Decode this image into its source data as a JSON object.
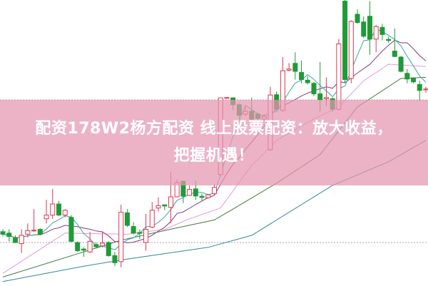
{
  "banner": {
    "line1": "配资178W2杨方配资 线上股票配资：放大收益，",
    "line2": "把握机遇！"
  },
  "colors": {
    "up": "#e0364f",
    "down": "#1f9a38",
    "ma5": "#3aa6a6",
    "ma10": "#8a3a7a",
    "ma20": "#e69ad8",
    "ma30": "#3f7a3a",
    "ma60": "#2a8a96",
    "grid": "#aaaaaa"
  },
  "chart_data": {
    "type": "candlestick",
    "title": "",
    "ylim": [
      0,
      100
    ],
    "grid": {
      "horizontal_dashed": [
        65,
        15
      ]
    },
    "candles": [
      [
        18.8,
        19.6,
        17.1,
        17.9
      ],
      [
        18.3,
        19.6,
        15.4,
        17.1
      ],
      [
        16.7,
        17.5,
        14.8,
        15.0
      ],
      [
        14.6,
        19.6,
        11.3,
        17.5
      ],
      [
        17.9,
        21.7,
        16.7,
        19.2
      ],
      [
        19.2,
        26.7,
        18.8,
        19.3
      ],
      [
        19.6,
        20.0,
        17.5,
        17.9
      ],
      [
        23.3,
        30.0,
        21.7,
        24.6
      ],
      [
        24.6,
        33.8,
        23.3,
        28.5
      ],
      [
        28.5,
        29.6,
        24.2,
        24.6
      ],
      [
        24.6,
        26.7,
        23.8,
        26.3
      ],
      [
        23.8,
        24.6,
        15.0,
        15.4
      ],
      [
        15.0,
        15.4,
        11.7,
        12.1
      ],
      [
        12.7,
        13.3,
        10.0,
        12.3
      ],
      [
        11.7,
        18.8,
        11.3,
        15.4
      ],
      [
        14.3,
        15.0,
        12.9,
        13.5
      ],
      [
        13.8,
        18.8,
        13.3,
        14.8
      ],
      [
        15.0,
        15.4,
        10.0,
        10.4
      ],
      [
        10.4,
        11.7,
        6.7,
        7.9
      ],
      [
        8.3,
        28.3,
        6.3,
        25.6
      ],
      [
        25.4,
        26.7,
        20.4,
        21.0
      ],
      [
        20.6,
        22.1,
        17.9,
        18.3
      ],
      [
        18.5,
        19.6,
        16.3,
        18.2
      ],
      [
        15.0,
        25.0,
        12.1,
        19.6
      ],
      [
        20.4,
        29.2,
        20.0,
        26.3
      ],
      [
        27.1,
        30.8,
        25.8,
        27.9
      ],
      [
        28.2,
        28.2,
        26.3,
        27.8
      ],
      [
        27.3,
        39.6,
        21.7,
        31.0
      ],
      [
        31.0,
        37.1,
        30.8,
        36.0
      ],
      [
        36.5,
        36.7,
        28.8,
        31.2
      ],
      [
        31.5,
        35.0,
        31.3,
        33.6
      ],
      [
        33.8,
        36.7,
        30.0,
        31.3
      ],
      [
        31.2,
        32.1,
        29.6,
        30.8
      ],
      [
        30.7,
        32.1,
        30.4,
        31.7
      ],
      [
        32.1,
        35.4,
        31.7,
        34.3
      ],
      [
        38.8,
        65.8,
        38.3,
        65.7
      ],
      [
        65.7,
        66.0,
        65.5,
        65.8
      ],
      [
        65.7,
        65.8,
        61.3,
        63.3
      ],
      [
        63.3,
        63.8,
        58.3,
        59.6
      ],
      [
        60.0,
        62.5,
        59.2,
        61.0
      ],
      [
        61.0,
        65.8,
        57.9,
        58.2
      ],
      [
        60.0,
        60.4,
        57.9,
        58.5
      ],
      [
        58.3,
        60.0,
        57.5,
        59.2
      ],
      [
        47.5,
        69.6,
        47.1,
        66.7
      ],
      [
        66.8,
        67.9,
        61.3,
        61.7
      ],
      [
        61.3,
        80.0,
        60.8,
        75.2
      ],
      [
        75.4,
        77.9,
        75.0,
        75.8
      ],
      [
        77.8,
        81.7,
        72.1,
        75.0
      ],
      [
        74.6,
        78.8,
        70.8,
        72.1
      ],
      [
        71.9,
        73.3,
        70.4,
        71.0
      ],
      [
        70.8,
        71.3,
        66.3,
        67.1
      ],
      [
        67.1,
        78.3,
        60.8,
        65.0
      ],
      [
        65.4,
        72.9,
        62.9,
        65.8
      ],
      [
        65.4,
        65.8,
        60.8,
        61.7
      ],
      [
        61.7,
        86.3,
        61.3,
        84.6
      ],
      [
        99.6,
        100,
        70.8,
        72.1
      ],
      [
        72.5,
        92.9,
        70.8,
        92.5
      ],
      [
        95.0,
        96.7,
        91.7,
        92.1
      ],
      [
        92.3,
        94.2,
        86.7,
        87.3
      ],
      [
        94.3,
        99.6,
        80.8,
        86.3
      ],
      [
        86.3,
        91.3,
        81.7,
        90.7
      ],
      [
        90.4,
        91.7,
        85.8,
        87.9
      ],
      [
        86.2,
        87.1,
        85.0,
        85.8
      ],
      [
        82.1,
        90.0,
        80.0,
        80.2
      ],
      [
        80.0,
        80.4,
        74.6,
        75.0
      ],
      [
        74.3,
        75.8,
        70.8,
        72.3
      ],
      [
        72.5,
        72.9,
        70.8,
        71.3
      ],
      [
        70.4,
        71.7,
        64.6,
        68.3
      ],
      [
        68.5,
        69.6,
        67.5,
        68.8
      ]
    ],
    "candle_fields": [
      "open",
      "high",
      "low",
      "close"
    ],
    "moving_averages": {
      "ma5": {
        "period": 5
      },
      "ma10": {
        "period": 10
      },
      "ma20": {
        "points": [
          [
            0,
            4.2
          ],
          [
            10,
            18.3
          ],
          [
            20,
            17.9
          ],
          [
            26,
            19.6
          ],
          [
            30,
            23.3
          ],
          [
            35,
            27.1
          ],
          [
            40,
            42.0
          ],
          [
            44,
            50.8
          ],
          [
            50,
            58.3
          ],
          [
            54,
            62.5
          ],
          [
            58,
            71.7
          ],
          [
            62,
            77.5
          ],
          [
            68,
            76.7
          ]
        ]
      },
      "ma30": {
        "points": [
          [
            0,
            2.9
          ],
          [
            13,
            11.7
          ],
          [
            19,
            15.8
          ],
          [
            26,
            19.2
          ],
          [
            34,
            22.9
          ],
          [
            37,
            26.7
          ],
          [
            44,
            35.8
          ],
          [
            51,
            45.8
          ],
          [
            57,
            62.5
          ],
          [
            64,
            72.5
          ],
          [
            68,
            72.9
          ]
        ]
      },
      "ma60": {
        "points": [
          [
            0,
            1.3
          ],
          [
            13,
            6.7
          ],
          [
            20,
            9.2
          ],
          [
            33,
            13.3
          ],
          [
            40,
            17.5
          ],
          [
            53,
            35.0
          ],
          [
            62,
            43.3
          ],
          [
            68,
            50.8
          ]
        ]
      }
    }
  }
}
